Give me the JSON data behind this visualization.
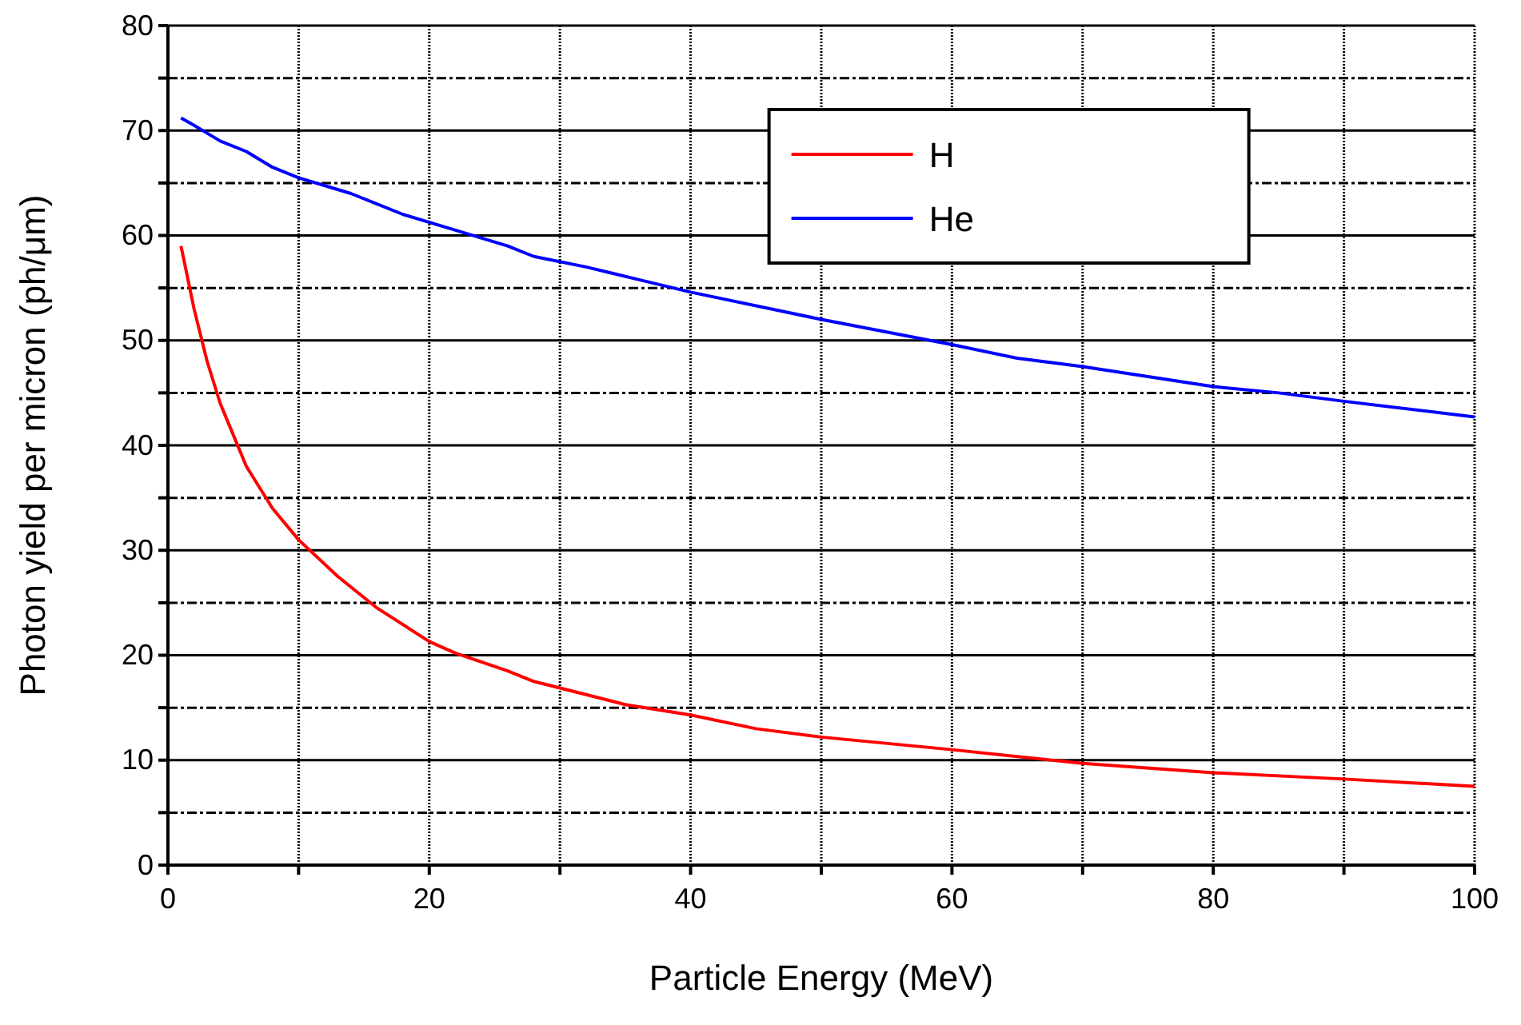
{
  "chart_data": {
    "type": "line",
    "xlabel": "Particle Energy (MeV)",
    "ylabel": "Photon yield per micron (ph/μm)",
    "xlim": [
      0,
      100
    ],
    "xticks": [
      0,
      {
        "value": 10,
        "label": null
      },
      20,
      {
        "value": 30,
        "label": null
      },
      40,
      {
        "value": 50,
        "label": null
      },
      60,
      {
        "value": 70,
        "label": null
      },
      80,
      {
        "value": 90,
        "label": null
      },
      100
    ],
    "ylim": [
      0,
      80
    ],
    "yticks": [
      0,
      {
        "value": 5,
        "label": null
      },
      10,
      {
        "value": 15,
        "label": null
      },
      20,
      {
        "value": 25,
        "label": null
      },
      30,
      {
        "value": 35,
        "label": null
      },
      40,
      {
        "value": 45,
        "label": null
      },
      50,
      {
        "value": 55,
        "label": null
      },
      60,
      {
        "value": 65,
        "label": null
      },
      70,
      {
        "value": 75,
        "label": null
      },
      80
    ],
    "grid": true,
    "legend": "top right",
    "marker": "none",
    "line_style": "solid",
    "series": [
      {
        "name": "H",
        "color": "#ff0000",
        "x": [
          1,
          1.5,
          2,
          3,
          4,
          5,
          6,
          8,
          10,
          13,
          16,
          20,
          22,
          26,
          28,
          35,
          40,
          45,
          50,
          60,
          70,
          80,
          90,
          100
        ],
        "values": [
          59,
          56,
          53,
          48,
          44,
          41,
          38,
          34,
          31,
          27.5,
          24.5,
          21.3,
          20.2,
          18.5,
          17.5,
          15.3,
          14.3,
          13,
          12.2,
          11,
          9.7,
          8.8,
          8.2,
          7.5
        ]
      },
      {
        "name": "He",
        "color": "#0000ff",
        "x": [
          1,
          2,
          4,
          6,
          8,
          10,
          14,
          18,
          22,
          26,
          28,
          32,
          36,
          40,
          50,
          60,
          65,
          70,
          80,
          85,
          90,
          100
        ],
        "values": [
          71.2,
          70.5,
          69,
          68,
          66.5,
          65.5,
          64,
          62,
          60.5,
          59,
          58,
          57,
          55.8,
          54.6,
          52,
          49.6,
          48.3,
          47.5,
          45.6,
          45,
          44.2,
          42.7
        ]
      }
    ]
  }
}
